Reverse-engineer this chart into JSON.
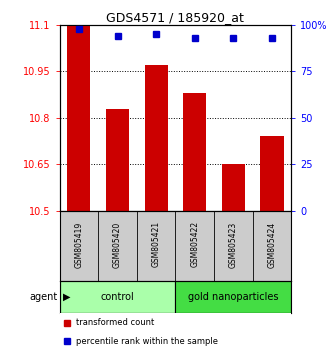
{
  "title": "GDS4571 / 185920_at",
  "samples": [
    "GSM805419",
    "GSM805420",
    "GSM805421",
    "GSM805422",
    "GSM805423",
    "GSM805424"
  ],
  "bar_values": [
    11.1,
    10.83,
    10.97,
    10.88,
    10.65,
    10.74
  ],
  "percentile_values": [
    98,
    94,
    95,
    93,
    93,
    93
  ],
  "ylim_left": [
    10.5,
    11.1
  ],
  "ylim_right": [
    0,
    100
  ],
  "yticks_left": [
    10.5,
    10.65,
    10.8,
    10.95,
    11.1
  ],
  "ytick_labels_left": [
    "10.5",
    "10.65",
    "10.8",
    "10.95",
    "11.1"
  ],
  "yticks_right": [
    0,
    25,
    50,
    75,
    100
  ],
  "ytick_labels_right": [
    "0",
    "25",
    "50",
    "75",
    "100%"
  ],
  "bar_color": "#cc0000",
  "dot_color": "#0000cc",
  "bar_width": 0.6,
  "groups": [
    {
      "label": "control",
      "indices": [
        0,
        1,
        2
      ],
      "color": "#aaffaa"
    },
    {
      "label": "gold nanoparticles",
      "indices": [
        3,
        4,
        5
      ],
      "color": "#44dd44"
    }
  ],
  "agent_label": "agent",
  "legend_items": [
    {
      "color": "#cc0000",
      "label": "transformed count"
    },
    {
      "color": "#0000cc",
      "label": "percentile rank within the sample"
    }
  ],
  "sample_row_bg": "#cccccc",
  "figsize": [
    3.31,
    3.54
  ],
  "dpi": 100
}
